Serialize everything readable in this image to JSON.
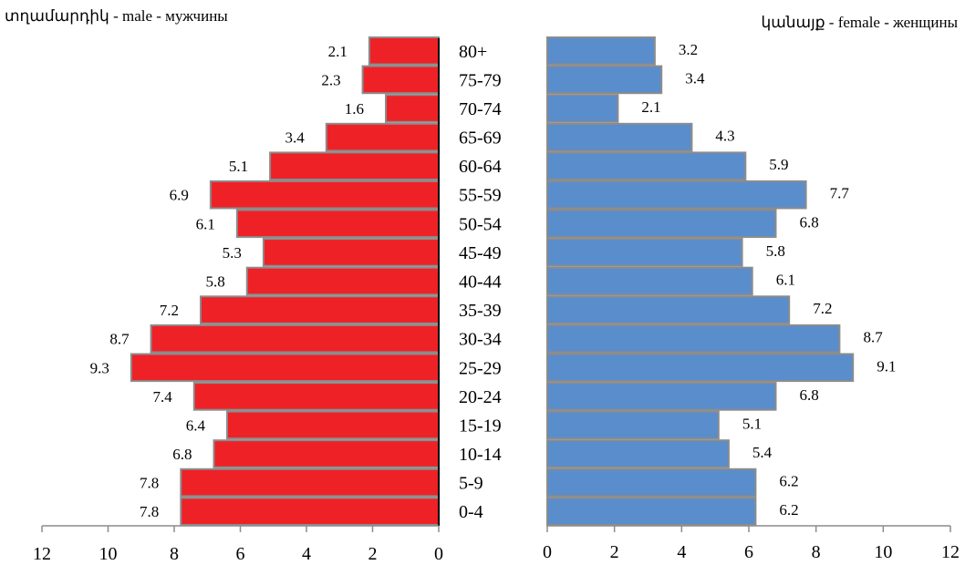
{
  "chart_data": {
    "type": "bar",
    "orientation": "horizontal",
    "layout": "population-pyramid",
    "categories": [
      "0-4",
      "5-9",
      "10-14",
      "15-19",
      "20-24",
      "25-29",
      "30-34",
      "35-39",
      "40-44",
      "45-49",
      "50-54",
      "55-59",
      "60-64",
      "65-69",
      "70-74",
      "75-79",
      "80+"
    ],
    "series": [
      {
        "name": "տղամարդիկ - male - мужчины",
        "side": "left",
        "color": "#ee2127",
        "values": [
          7.8,
          7.8,
          6.8,
          6.4,
          7.4,
          9.3,
          8.7,
          7.2,
          5.8,
          5.3,
          6.1,
          6.9,
          5.1,
          3.4,
          1.6,
          2.3,
          2.1
        ]
      },
      {
        "name": "կանայք - female - женщины",
        "side": "right",
        "color": "#5a8dcb",
        "values": [
          6.2,
          6.2,
          5.4,
          5.1,
          6.8,
          9.1,
          8.7,
          7.2,
          6.1,
          5.8,
          6.8,
          7.7,
          5.9,
          4.3,
          2.1,
          3.4,
          3.2
        ]
      }
    ],
    "xlim": [
      0,
      12
    ],
    "xticks": [
      0,
      2,
      4,
      6,
      8,
      10,
      12
    ],
    "xtick_labels_left": [
      "12",
      "10",
      "8",
      "6",
      "4",
      "2",
      "0"
    ],
    "xtick_labels_right": [
      "0",
      "2",
      "4",
      "6",
      "8",
      "10",
      "12"
    ],
    "grid": false,
    "data_labels": true
  }
}
